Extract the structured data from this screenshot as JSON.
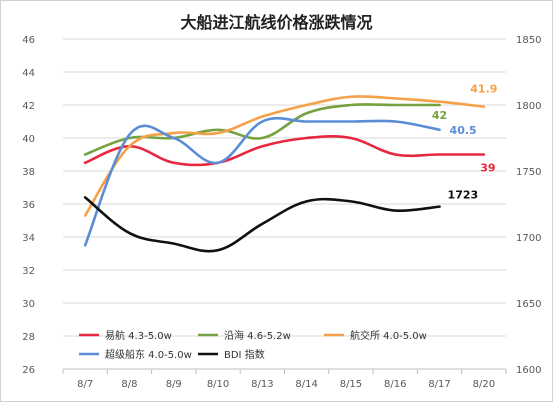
{
  "chart_data": {
    "type": "line",
    "title": "大船进江航线价格涨跌情况",
    "categories": [
      "8/7",
      "8/8",
      "8/9",
      "8/10",
      "8/13",
      "8/14",
      "8/15",
      "8/16",
      "8/17",
      "8/20"
    ],
    "y_left": {
      "min": 26,
      "max": 46,
      "step": 2,
      "ticks": [
        "26",
        "28",
        "30",
        "32",
        "34",
        "36",
        "38",
        "40",
        "42",
        "44",
        "46"
      ]
    },
    "y_right": {
      "min": 1600,
      "max": 1850,
      "step": 50,
      "ticks": [
        "1600",
        "1650",
        "1700",
        "1750",
        "1800",
        "1850"
      ]
    },
    "grid": "horizontal",
    "legend_position": "bottom-left",
    "series": [
      {
        "name": "易航 4.3-5.0w",
        "axis": "left",
        "color": "#e8283e",
        "values": [
          38.5,
          39.5,
          38.5,
          38.5,
          39.5,
          40.0,
          40.0,
          39.0,
          39.0,
          39.0
        ],
        "end_label": "39"
      },
      {
        "name": "沿海 4.6-5.2w",
        "axis": "left",
        "color": "#76a13f",
        "values": [
          39.0,
          40.0,
          40.0,
          40.5,
          40.0,
          41.5,
          42.0,
          42.0,
          42.0,
          null
        ],
        "end_label": "42"
      },
      {
        "name": "航交所 4.0-5.0w",
        "axis": "left",
        "color": "#f4a14a",
        "values": [
          35.3,
          39.5,
          40.3,
          40.3,
          41.3,
          42.0,
          42.5,
          42.4,
          42.2,
          41.9
        ],
        "end_label": "41.9"
      },
      {
        "name": "超级船东 4.0-5.0w",
        "axis": "left",
        "color": "#5b8dd6",
        "values": [
          33.5,
          40.2,
          40.0,
          38.5,
          41.0,
          41.0,
          41.0,
          41.0,
          40.5,
          null
        ],
        "end_label": "40.5"
      },
      {
        "name": "BDI 指数",
        "axis": "right",
        "color": "#111111",
        "values": [
          1730,
          1703,
          1695,
          1690,
          1710,
          1727,
          1727,
          1720,
          1723,
          null
        ],
        "end_label": "1723"
      }
    ]
  }
}
